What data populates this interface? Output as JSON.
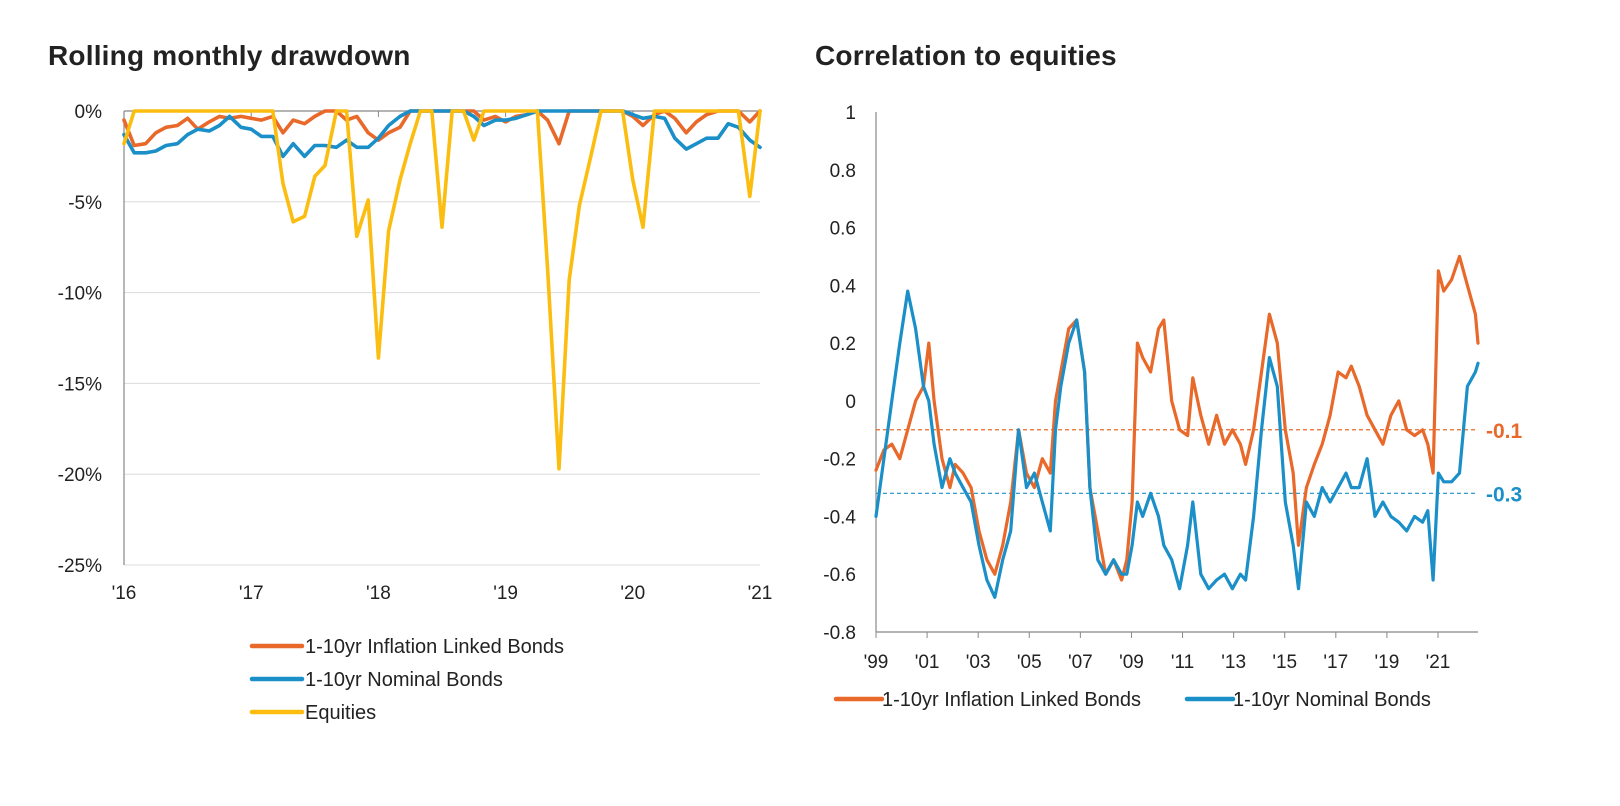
{
  "colors": {
    "ilb": "#E8692A",
    "nominal": "#1B8FC8",
    "equities": "#FBBD10",
    "grid": "#dcdcdc",
    "axis": "#888888"
  },
  "chart_data": [
    {
      "id": "drawdown",
      "type": "line",
      "title": "Rolling monthly drawdown",
      "xlabel": "",
      "ylabel": "",
      "x_ticks": [
        "'16",
        "'17",
        "'18",
        "'19",
        "'20",
        "'21"
      ],
      "xlim": [
        2016,
        2021
      ],
      "ylim": [
        -25,
        0
      ],
      "y_ticks": [
        0,
        -5,
        -10,
        -15,
        -20,
        -25
      ],
      "y_tick_labels": [
        "0%",
        "-5%",
        "-10%",
        "-15%",
        "-20%",
        "-25%"
      ],
      "grid": true,
      "legend_position": "bottom",
      "series": [
        {
          "name": "1-10yr Inflation Linked Bonds",
          "color_key": "ilb",
          "x": [
            2016.0,
            2016.08,
            2016.17,
            2016.25,
            2016.33,
            2016.42,
            2016.5,
            2016.58,
            2016.67,
            2016.75,
            2016.83,
            2016.92,
            2017.0,
            2017.08,
            2017.17,
            2017.25,
            2017.33,
            2017.42,
            2017.5,
            2017.58,
            2017.67,
            2017.75,
            2017.83,
            2017.92,
            2018.0,
            2018.08,
            2018.17,
            2018.25,
            2018.33,
            2018.42,
            2018.5,
            2018.58,
            2018.67,
            2018.75,
            2018.83,
            2018.92,
            2019.0,
            2019.08,
            2019.17,
            2019.25,
            2019.33,
            2019.42,
            2019.5,
            2019.58,
            2019.67,
            2019.75,
            2019.83,
            2019.92,
            2020.0,
            2020.08,
            2020.17,
            2020.25,
            2020.33,
            2020.42,
            2020.5,
            2020.58,
            2020.67,
            2020.75,
            2020.83,
            2020.92,
            2021.0
          ],
          "values": [
            -0.5,
            -1.9,
            -1.8,
            -1.2,
            -0.9,
            -0.8,
            -0.4,
            -1.0,
            -0.6,
            -0.3,
            -0.4,
            -0.3,
            -0.4,
            -0.5,
            -0.3,
            -1.2,
            -0.5,
            -0.7,
            -0.3,
            0,
            0,
            -0.5,
            -0.3,
            -1.2,
            -1.6,
            -1.2,
            -0.9,
            0,
            0,
            0,
            0,
            0,
            0,
            0,
            -0.5,
            -0.3,
            -0.6,
            -0.3,
            -0.2,
            0,
            -0.5,
            -1.8,
            0,
            0,
            0,
            0,
            0,
            0,
            -0.3,
            -0.8,
            -0.2,
            0,
            -0.4,
            -1.2,
            -0.6,
            -0.2,
            0,
            0,
            0,
            -0.6,
            0
          ]
        },
        {
          "name": "1-10yr Nominal Bonds",
          "color_key": "nominal",
          "x": [
            2016.0,
            2016.08,
            2016.17,
            2016.25,
            2016.33,
            2016.42,
            2016.5,
            2016.58,
            2016.67,
            2016.75,
            2016.83,
            2016.92,
            2017.0,
            2017.08,
            2017.17,
            2017.25,
            2017.33,
            2017.42,
            2017.5,
            2017.58,
            2017.67,
            2017.75,
            2017.83,
            2017.92,
            2018.0,
            2018.08,
            2018.17,
            2018.25,
            2018.33,
            2018.42,
            2018.5,
            2018.58,
            2018.67,
            2018.75,
            2018.83,
            2018.92,
            2019.0,
            2019.08,
            2019.17,
            2019.25,
            2019.33,
            2019.42,
            2019.5,
            2019.58,
            2019.67,
            2019.75,
            2019.83,
            2019.92,
            2020.0,
            2020.08,
            2020.17,
            2020.25,
            2020.33,
            2020.42,
            2020.5,
            2020.58,
            2020.67,
            2020.75,
            2020.83,
            2020.92,
            2021.0
          ],
          "values": [
            -1.3,
            -2.3,
            -2.3,
            -2.2,
            -1.9,
            -1.8,
            -1.3,
            -1.0,
            -1.1,
            -0.8,
            -0.3,
            -0.9,
            -1.0,
            -1.4,
            -1.4,
            -2.5,
            -1.8,
            -2.5,
            -1.9,
            -1.9,
            -2.0,
            -1.6,
            -2.0,
            -2.0,
            -1.5,
            -0.8,
            -0.3,
            0,
            0,
            0,
            0,
            0,
            0,
            -0.3,
            -0.8,
            -0.5,
            -0.5,
            -0.4,
            -0.2,
            0,
            0,
            0,
            0,
            0,
            0,
            0,
            0,
            0,
            -0.2,
            -0.4,
            -0.3,
            -0.4,
            -1.5,
            -2.1,
            -1.8,
            -1.5,
            -1.5,
            -0.7,
            -0.9,
            -1.6,
            -2.0
          ]
        },
        {
          "name": "Equities",
          "color_key": "equities",
          "x": [
            2016.0,
            2016.08,
            2016.17,
            2016.25,
            2016.33,
            2016.42,
            2016.5,
            2016.58,
            2016.67,
            2016.75,
            2016.83,
            2016.92,
            2017.0,
            2017.08,
            2017.17,
            2017.25,
            2017.33,
            2017.42,
            2017.5,
            2017.58,
            2017.67,
            2017.75,
            2017.83,
            2017.92,
            2018.0,
            2018.08,
            2018.17,
            2018.25,
            2018.33,
            2018.42,
            2018.5,
            2018.58,
            2018.67,
            2018.75,
            2018.83,
            2018.92,
            2019.0,
            2019.08,
            2019.17,
            2019.25,
            2019.33,
            2019.42,
            2019.5,
            2019.58,
            2019.67,
            2019.75,
            2019.83,
            2019.92,
            2020.0,
            2020.08,
            2020.17,
            2020.25,
            2020.33,
            2020.42,
            2020.5,
            2020.58,
            2020.67,
            2020.75,
            2020.83,
            2020.92,
            2021.0
          ],
          "values": [
            -1.8,
            0,
            0,
            0,
            0,
            0,
            0,
            0,
            0,
            0,
            0,
            0,
            0,
            0,
            0,
            -4.0,
            -6.1,
            -5.8,
            -3.6,
            -3.0,
            0,
            0,
            -6.9,
            -4.9,
            -13.6,
            -6.6,
            -3.8,
            -1.8,
            0,
            0,
            -6.4,
            0,
            0,
            -1.6,
            0,
            0,
            0,
            0,
            0,
            0,
            -8.7,
            -19.7,
            -9.3,
            -5.2,
            -2.5,
            0,
            0,
            0,
            -3.8,
            -6.4,
            0,
            0,
            0,
            0,
            0,
            0,
            0,
            0,
            0,
            -4.7,
            0
          ]
        }
      ]
    },
    {
      "id": "correlation",
      "type": "line",
      "title": "Correlation to equities",
      "xlabel": "",
      "ylabel": "",
      "x_ticks": [
        "'99",
        "'01",
        "'03",
        "'05",
        "'07",
        "'09",
        "'11",
        "'13",
        "'15",
        "'17",
        "'19",
        "'21"
      ],
      "xlim": [
        1999,
        2021.8
      ],
      "ylim": [
        -0.8,
        1
      ],
      "y_ticks": [
        1,
        0.8,
        0.6,
        0.4,
        0.2,
        0,
        -0.2,
        -0.4,
        -0.6,
        -0.8
      ],
      "y_tick_labels": [
        "1",
        "0.8",
        "0.6",
        "0.4",
        "0.2",
        "0",
        "-0.2",
        "-0.4",
        "-0.6",
        "-0.8"
      ],
      "grid": false,
      "legend_position": "bottom",
      "reference_lines": [
        {
          "value": -0.1,
          "label": "-0.1",
          "color_key": "ilb"
        },
        {
          "value": -0.32,
          "label": "-0.3",
          "color_key": "nominal"
        }
      ],
      "series": [
        {
          "name": "1-10yr Inflation Linked Bonds",
          "color_key": "ilb",
          "x": [
            1999.0,
            1999.3,
            1999.6,
            1999.9,
            2000.2,
            2000.5,
            2000.8,
            2001.0,
            2001.2,
            2001.5,
            2001.8,
            2002.0,
            2002.3,
            2002.6,
            2002.9,
            2003.2,
            2003.5,
            2003.8,
            2004.1,
            2004.4,
            2004.7,
            2005.0,
            2005.3,
            2005.6,
            2005.8,
            2006.0,
            2006.3,
            2006.6,
            2006.9,
            2007.1,
            2007.4,
            2007.7,
            2008.0,
            2008.3,
            2008.5,
            2008.7,
            2008.9,
            2009.1,
            2009.4,
            2009.7,
            2009.9,
            2010.2,
            2010.5,
            2010.8,
            2011.0,
            2011.3,
            2011.6,
            2011.9,
            2012.2,
            2012.5,
            2012.8,
            2013.0,
            2013.3,
            2013.6,
            2013.9,
            2014.2,
            2014.5,
            2014.8,
            2015.0,
            2015.3,
            2015.6,
            2015.9,
            2016.2,
            2016.5,
            2016.8,
            2017.0,
            2017.3,
            2017.6,
            2017.9,
            2018.2,
            2018.5,
            2018.8,
            2019.1,
            2019.4,
            2019.7,
            2019.9,
            2020.1,
            2020.3,
            2020.5,
            2020.8,
            2021.1,
            2021.4,
            2021.7,
            2021.8
          ],
          "values": [
            -0.24,
            -0.17,
            -0.15,
            -0.2,
            -0.1,
            0.0,
            0.05,
            0.2,
            0.0,
            -0.2,
            -0.3,
            -0.22,
            -0.25,
            -0.3,
            -0.45,
            -0.55,
            -0.6,
            -0.5,
            -0.35,
            -0.1,
            -0.25,
            -0.3,
            -0.2,
            -0.25,
            0.0,
            0.1,
            0.25,
            0.28,
            0.1,
            -0.3,
            -0.45,
            -0.6,
            -0.55,
            -0.62,
            -0.55,
            -0.35,
            0.2,
            0.15,
            0.1,
            0.25,
            0.28,
            0.0,
            -0.1,
            -0.12,
            0.08,
            -0.05,
            -0.15,
            -0.05,
            -0.15,
            -0.1,
            -0.15,
            -0.22,
            -0.1,
            0.1,
            0.3,
            0.2,
            -0.1,
            -0.25,
            -0.5,
            -0.3,
            -0.22,
            -0.15,
            -0.05,
            0.1,
            0.08,
            0.12,
            0.05,
            -0.05,
            -0.1,
            -0.15,
            -0.05,
            0.0,
            -0.1,
            -0.12,
            -0.1,
            -0.15,
            -0.25,
            0.45,
            0.38,
            0.42,
            0.5,
            0.4,
            0.3,
            0.2
          ]
        },
        {
          "name": "1-10yr Nominal Bonds",
          "color_key": "nominal",
          "x": [
            1999.0,
            1999.3,
            1999.6,
            1999.9,
            2000.2,
            2000.5,
            2000.8,
            2001.0,
            2001.2,
            2001.5,
            2001.8,
            2002.0,
            2002.3,
            2002.6,
            2002.9,
            2003.2,
            2003.5,
            2003.8,
            2004.1,
            2004.4,
            2004.7,
            2005.0,
            2005.3,
            2005.6,
            2005.8,
            2006.0,
            2006.3,
            2006.6,
            2006.9,
            2007.1,
            2007.4,
            2007.7,
            2008.0,
            2008.3,
            2008.5,
            2008.7,
            2008.9,
            2009.1,
            2009.4,
            2009.7,
            2009.9,
            2010.2,
            2010.5,
            2010.8,
            2011.0,
            2011.3,
            2011.6,
            2011.9,
            2012.2,
            2012.5,
            2012.8,
            2013.0,
            2013.3,
            2013.6,
            2013.9,
            2014.2,
            2014.5,
            2014.8,
            2015.0,
            2015.3,
            2015.6,
            2015.9,
            2016.2,
            2016.5,
            2016.8,
            2017.0,
            2017.3,
            2017.6,
            2017.9,
            2018.2,
            2018.5,
            2018.8,
            2019.1,
            2019.4,
            2019.7,
            2019.9,
            2020.1,
            2020.3,
            2020.5,
            2020.8,
            2021.1,
            2021.4,
            2021.7,
            2021.8
          ],
          "values": [
            -0.4,
            -0.2,
            0.0,
            0.2,
            0.38,
            0.25,
            0.05,
            0.0,
            -0.15,
            -0.3,
            -0.2,
            -0.25,
            -0.3,
            -0.35,
            -0.5,
            -0.62,
            -0.68,
            -0.55,
            -0.45,
            -0.1,
            -0.3,
            -0.25,
            -0.35,
            -0.45,
            -0.1,
            0.05,
            0.2,
            0.28,
            0.1,
            -0.3,
            -0.55,
            -0.6,
            -0.55,
            -0.6,
            -0.6,
            -0.5,
            -0.35,
            -0.4,
            -0.32,
            -0.4,
            -0.5,
            -0.55,
            -0.65,
            -0.5,
            -0.35,
            -0.6,
            -0.65,
            -0.62,
            -0.6,
            -0.65,
            -0.6,
            -0.62,
            -0.4,
            -0.1,
            0.15,
            0.05,
            -0.35,
            -0.5,
            -0.65,
            -0.35,
            -0.4,
            -0.3,
            -0.35,
            -0.3,
            -0.25,
            -0.3,
            -0.3,
            -0.2,
            -0.4,
            -0.35,
            -0.4,
            -0.42,
            -0.45,
            -0.4,
            -0.42,
            -0.38,
            -0.62,
            -0.25,
            -0.28,
            -0.28,
            -0.25,
            0.05,
            0.1,
            0.13
          ]
        }
      ]
    }
  ]
}
